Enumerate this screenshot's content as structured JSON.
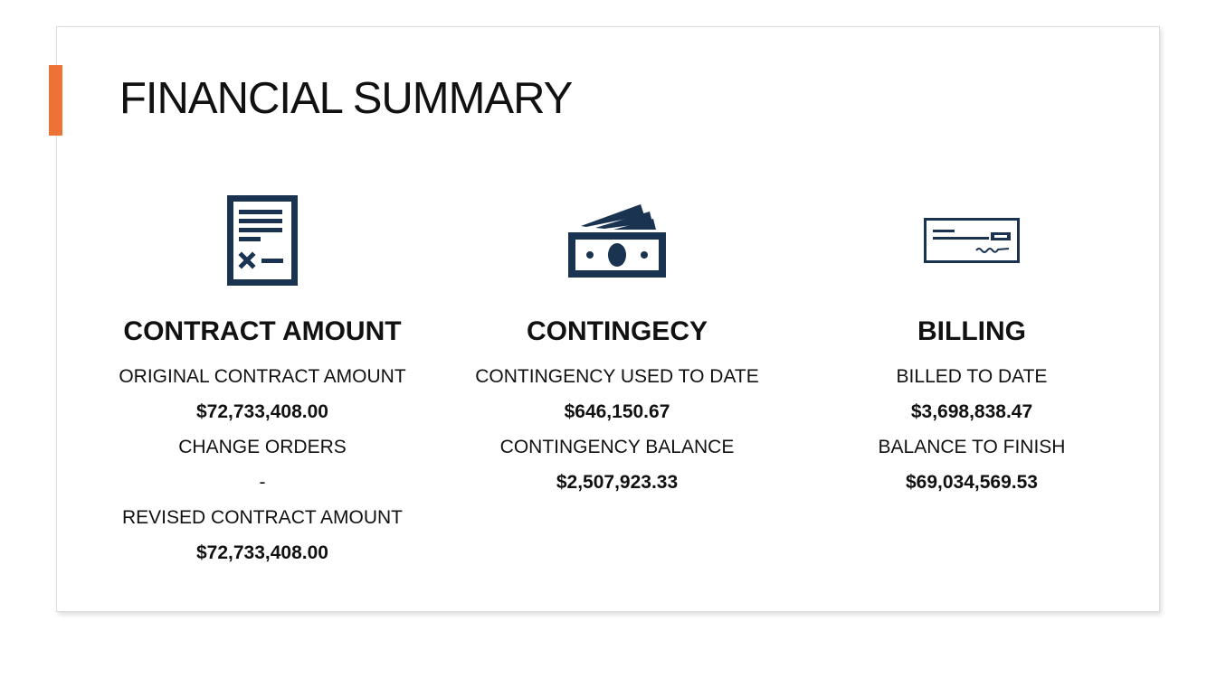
{
  "slide": {
    "title": "FINANCIAL SUMMARY",
    "accent_color": "#ED7235",
    "icon_color": "#1A3350"
  },
  "columns": [
    {
      "key": "contract",
      "icon": "contract-document-icon",
      "heading": "CONTRACT AMOUNT",
      "lines": [
        {
          "text": "ORIGINAL CONTRACT AMOUNT",
          "bold": false
        },
        {
          "text": "$72,733,408.00",
          "bold": true
        },
        {
          "text": "CHANGE ORDERS",
          "bold": false
        },
        {
          "text": "-",
          "bold": false
        },
        {
          "text": "REVISED CONTRACT AMOUNT",
          "bold": false
        },
        {
          "text": "$72,733,408.00",
          "bold": true
        }
      ]
    },
    {
      "key": "contingency",
      "icon": "money-stack-icon",
      "heading": "CONTINGECY",
      "lines": [
        {
          "text": "CONTINGENCY USED TO DATE",
          "bold": false
        },
        {
          "text": "$646,150.67",
          "bold": true
        },
        {
          "text": "CONTINGENCY BALANCE",
          "bold": false
        },
        {
          "text": "$2,507,923.33",
          "bold": true
        }
      ]
    },
    {
      "key": "billing",
      "icon": "check-icon",
      "heading": "BILLING",
      "lines": [
        {
          "text": "BILLED TO DATE",
          "bold": false
        },
        {
          "text": "$3,698,838.47",
          "bold": true
        },
        {
          "text": "BALANCE TO FINISH",
          "bold": false
        },
        {
          "text": "$69,034,569.53",
          "bold": true
        }
      ]
    }
  ]
}
